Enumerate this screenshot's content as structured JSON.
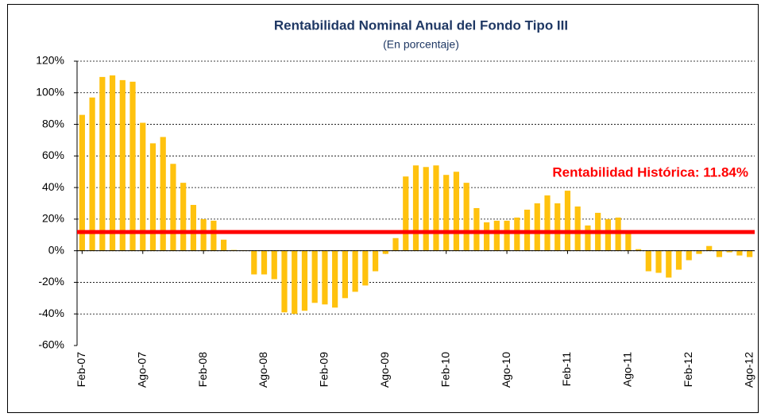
{
  "chart_data": {
    "type": "bar",
    "title": "Rentabilidad Nominal Anual del Fondo Tipo III",
    "subtitle": "(En porcentaje)",
    "categories": [
      "Feb-07",
      null,
      null,
      null,
      null,
      null,
      "Ago-07",
      null,
      null,
      null,
      null,
      null,
      "Feb-08",
      null,
      null,
      null,
      null,
      null,
      "Ago-08",
      null,
      null,
      null,
      null,
      null,
      "Feb-09",
      null,
      null,
      null,
      null,
      null,
      "Ago-09",
      null,
      null,
      null,
      null,
      null,
      "Feb-10",
      null,
      null,
      null,
      null,
      null,
      "Ago-10",
      null,
      null,
      null,
      null,
      null,
      "Feb-11",
      null,
      null,
      null,
      null,
      null,
      "Ago-11",
      null,
      null,
      null,
      null,
      null,
      "Feb-12",
      null,
      null,
      null,
      null,
      null,
      "Ago-12"
    ],
    "values": [
      86,
      97,
      110,
      111,
      108,
      107,
      81,
      68,
      72,
      55,
      43,
      29,
      20,
      19,
      7,
      0.5,
      0.3,
      -15,
      -15,
      -18,
      -39,
      -40,
      -38,
      -33,
      -34,
      -36,
      -30,
      -26,
      -22,
      -13,
      -2,
      8,
      47,
      54,
      53,
      54,
      48,
      50,
      43,
      27,
      18,
      19,
      19,
      21,
      26,
      30,
      35,
      30,
      38,
      28,
      16,
      24,
      20,
      21,
      11,
      1,
      -13,
      -14,
      -17,
      -12,
      -6,
      -2,
      3,
      -4,
      -1,
      -3,
      -4
    ],
    "color": "#ffc20e",
    "ylim": [
      -60,
      120
    ],
    "yticks": [
      {
        "value": -60,
        "label": "-60%"
      },
      {
        "value": -40,
        "label": "-40%"
      },
      {
        "value": -20,
        "label": "-20%"
      },
      {
        "value": 0,
        "label": "0%"
      },
      {
        "value": 20,
        "label": "20%"
      },
      {
        "value": 40,
        "label": "40%"
      },
      {
        "value": 60,
        "label": "60%"
      },
      {
        "value": 80,
        "label": "80%"
      },
      {
        "value": 100,
        "label": "100%"
      },
      {
        "value": 120,
        "label": "120%"
      }
    ],
    "grid": true,
    "reference_line": {
      "value": 11.84,
      "color": "#ff0000",
      "label": "Rentabilidad Histórica: 11.84%"
    }
  }
}
